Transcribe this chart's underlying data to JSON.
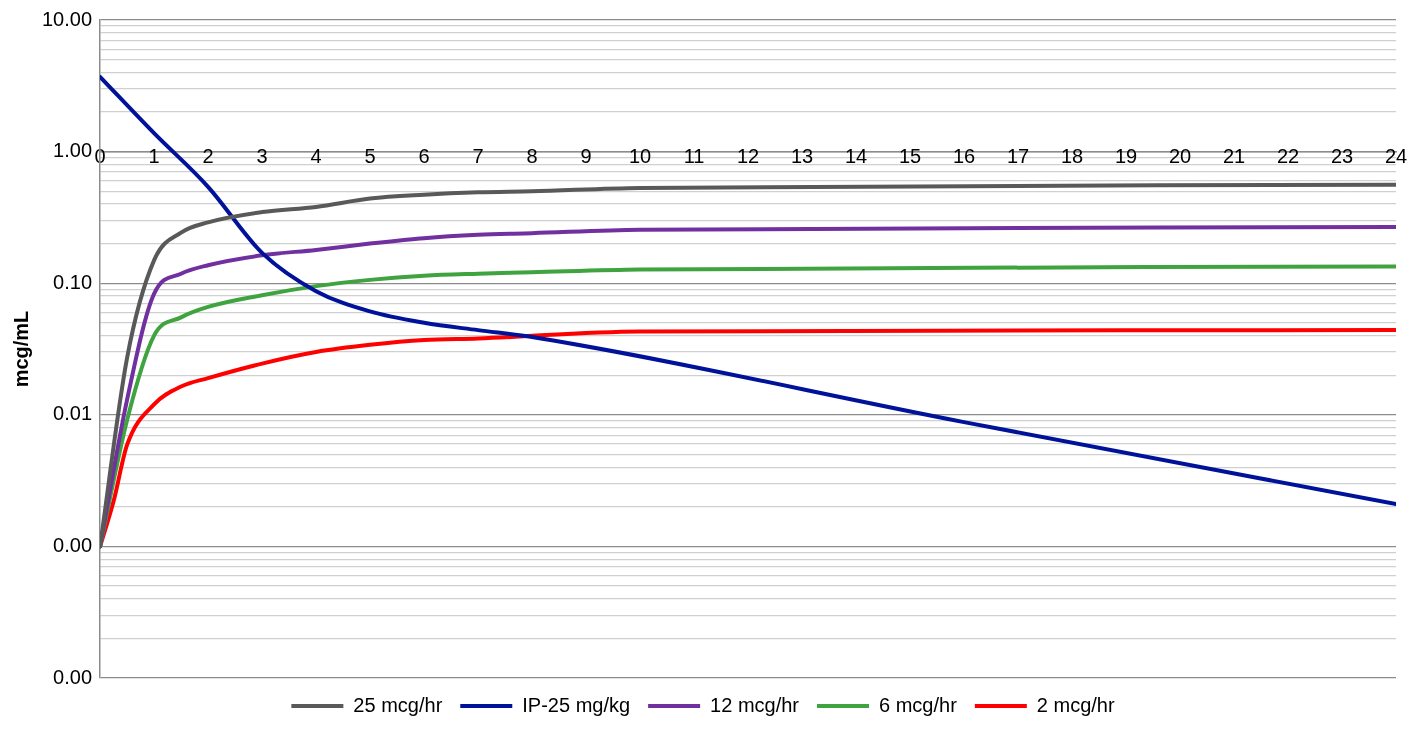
{
  "chart_data": {
    "type": "line",
    "ylabel": "mcg/mL",
    "log": "y",
    "grid": "y",
    "legend": "bottom",
    "marker": "none",
    "line_style": "solid",
    "xlim": [
      0,
      24
    ],
    "xticks": [
      0,
      1,
      2,
      3,
      4,
      5,
      6,
      7,
      8,
      9,
      10,
      11,
      12,
      13,
      14,
      15,
      16,
      17,
      18,
      19,
      20,
      21,
      22,
      23,
      24
    ],
    "ylim": [
      0.0001,
      10
    ],
    "yticks": [
      {
        "value": 0.0001,
        "label": "0.00"
      },
      {
        "value": 0.0002,
        "label": null
      },
      {
        "value": 0.0003,
        "label": null
      },
      {
        "value": 0.0004,
        "label": null
      },
      {
        "value": 0.0005,
        "label": null
      },
      {
        "value": 0.0006,
        "label": null
      },
      {
        "value": 0.0007,
        "label": null
      },
      {
        "value": 0.0008,
        "label": null
      },
      {
        "value": 0.0009,
        "label": null
      },
      {
        "value": 0.001,
        "label": "0.00"
      },
      {
        "value": 0.002,
        "label": null
      },
      {
        "value": 0.003,
        "label": null
      },
      {
        "value": 0.004,
        "label": null
      },
      {
        "value": 0.005,
        "label": null
      },
      {
        "value": 0.006,
        "label": null
      },
      {
        "value": 0.007,
        "label": null
      },
      {
        "value": 0.008,
        "label": null
      },
      {
        "value": 0.009,
        "label": null
      },
      {
        "value": 0.01,
        "label": "0.01"
      },
      {
        "value": 0.02,
        "label": null
      },
      {
        "value": 0.03,
        "label": null
      },
      {
        "value": 0.04,
        "label": null
      },
      {
        "value": 0.05,
        "label": null
      },
      {
        "value": 0.06,
        "label": null
      },
      {
        "value": 0.07,
        "label": null
      },
      {
        "value": 0.08,
        "label": null
      },
      {
        "value": 0.09,
        "label": null
      },
      {
        "value": 0.1,
        "label": "0.10"
      },
      {
        "value": 0.2,
        "label": null
      },
      {
        "value": 0.3,
        "label": null
      },
      {
        "value": 0.4,
        "label": null
      },
      {
        "value": 0.5,
        "label": null
      },
      {
        "value": 0.6,
        "label": null
      },
      {
        "value": 0.7,
        "label": null
      },
      {
        "value": 0.8,
        "label": null
      },
      {
        "value": 0.9,
        "label": null
      },
      {
        "value": 1,
        "label": "1.00"
      },
      {
        "value": 2,
        "label": null
      },
      {
        "value": 3,
        "label": null
      },
      {
        "value": 4,
        "label": null
      },
      {
        "value": 5,
        "label": null
      },
      {
        "value": 6,
        "label": null
      },
      {
        "value": 7,
        "label": null
      },
      {
        "value": 8,
        "label": null
      },
      {
        "value": 9,
        "label": null
      },
      {
        "value": 10,
        "label": "10.00"
      }
    ],
    "series": [
      {
        "name": "25 mcg/hr",
        "color": "#595959",
        "x": [
          0,
          0.5,
          1,
          1.5,
          2,
          3,
          4,
          5,
          6,
          7,
          8,
          10,
          24
        ],
        "values": [
          0.001,
          0.027,
          0.149,
          0.242,
          0.29,
          0.347,
          0.38,
          0.44,
          0.47,
          0.49,
          0.5,
          0.53,
          0.56
        ]
      },
      {
        "name": "IP-25 mg/kg",
        "color": "#00129a",
        "x": [
          0,
          1,
          2,
          3,
          4,
          5,
          6,
          7,
          8,
          16,
          24
        ],
        "values": [
          3.7,
          1.38,
          0.54,
          0.17,
          0.087,
          0.061,
          0.05,
          0.044,
          0.039,
          0.0088,
          0.0021
        ]
      },
      {
        "name": "12 mcg/hr",
        "color": "#7030a0",
        "x": [
          0,
          0.5,
          1,
          1.5,
          2,
          3,
          4,
          5,
          6,
          7,
          8,
          10,
          24
        ],
        "values": [
          0.001,
          0.013,
          0.083,
          0.118,
          0.137,
          0.163,
          0.179,
          0.2,
          0.22,
          0.233,
          0.24,
          0.255,
          0.267
        ]
      },
      {
        "name": "6 mcg/hr",
        "color": "#3fa33f",
        "x": [
          0,
          0.5,
          1,
          1.5,
          2,
          3,
          4,
          5,
          6,
          7,
          8,
          10,
          24
        ],
        "values": [
          0.001,
          0.0091,
          0.04,
          0.055,
          0.066,
          0.081,
          0.095,
          0.106,
          0.114,
          0.118,
          0.121,
          0.127,
          0.134
        ]
      },
      {
        "name": "2 mcg/hr",
        "color": "#ff0000",
        "x": [
          0,
          0.25,
          0.5,
          1,
          1.5,
          2,
          3,
          4,
          5,
          6,
          7,
          10,
          24
        ],
        "values": [
          0.001,
          0.0022,
          0.0059,
          0.012,
          0.0164,
          0.019,
          0.0245,
          0.03,
          0.034,
          0.037,
          0.038,
          0.043,
          0.044
        ]
      }
    ]
  }
}
